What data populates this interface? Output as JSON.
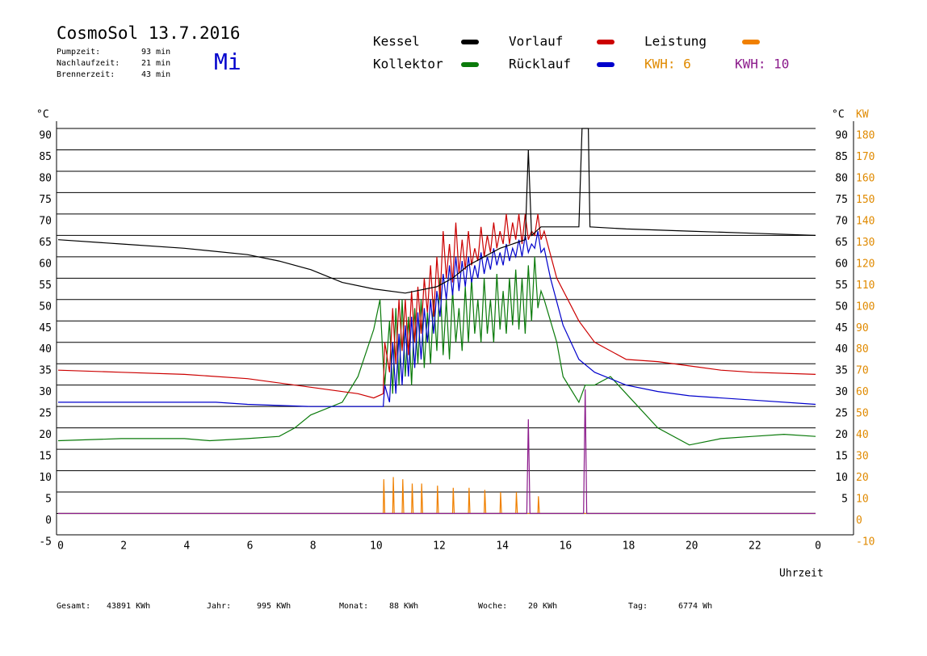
{
  "chart_data": {
    "type": "line",
    "title": "CosmoSol 13.7.2016",
    "weekday": "Mi",
    "info": [
      {
        "label": "Pumpzeit:",
        "value": "93 min"
      },
      {
        "label": "Nachlaufzeit:",
        "value": "21 min"
      },
      {
        "label": "Brennerzeit:",
        "value": "43 min"
      }
    ],
    "kwh_labels": [
      {
        "text": "KWH: 6",
        "color": "#e08a00"
      },
      {
        "text": "KWH: 10",
        "color": "#8b1a8b"
      }
    ],
    "y_unit": "°C",
    "y_unit_right": "°C",
    "y2_unit": "KW",
    "x_label": "Uhrzeit",
    "xlim": [
      0,
      24
    ],
    "xticks": [
      0,
      2,
      4,
      6,
      8,
      10,
      12,
      14,
      16,
      18,
      20,
      22,
      {
        "value": 24,
        "label": "0"
      }
    ],
    "ylim": [
      -5,
      90
    ],
    "yticks": [
      -5,
      0,
      5,
      10,
      15,
      20,
      25,
      30,
      35,
      40,
      45,
      50,
      55,
      60,
      65,
      70,
      75,
      80,
      85,
      90
    ],
    "yticks_right": [
      5,
      10,
      15,
      20,
      25,
      30,
      35,
      40,
      45,
      50,
      55,
      60,
      65,
      70,
      75,
      80,
      85,
      90
    ],
    "y2lim": [
      -10,
      180
    ],
    "y2ticks": [
      -10,
      0,
      10,
      20,
      30,
      40,
      50,
      60,
      70,
      80,
      90,
      100,
      110,
      120,
      130,
      140,
      150,
      160,
      170,
      180
    ],
    "grid": true,
    "series": [
      {
        "name": "Kessel",
        "color": "#000000",
        "x": [
          0,
          2,
          4,
          6,
          7,
          8,
          9,
          10,
          11,
          12,
          12.5,
          13,
          14,
          14.8,
          14.9,
          15,
          15.3,
          16.5,
          16.6,
          16.8,
          16.85,
          18,
          20,
          22,
          24
        ],
        "values": [
          64,
          63,
          62,
          60.5,
          59,
          57,
          54,
          52.5,
          51.5,
          53,
          55,
          58,
          62,
          64,
          85,
          65,
          67,
          67,
          90,
          90,
          67,
          66.5,
          66,
          65.5,
          65
        ]
      },
      {
        "name": "Kollektor",
        "color": "#0a7a0a",
        "x": [
          0,
          2,
          4,
          4.8,
          6,
          7,
          7.5,
          8,
          9,
          9.5,
          10,
          10.2,
          10.3,
          10.35,
          10.5,
          10.6,
          10.7,
          10.8,
          10.9,
          11.0,
          11.1,
          11.2,
          11.3,
          11.4,
          11.5,
          11.6,
          11.7,
          11.8,
          11.9,
          12.0,
          12.1,
          12.2,
          12.3,
          12.4,
          12.5,
          12.6,
          12.7,
          12.8,
          12.9,
          13.0,
          13.1,
          13.2,
          13.3,
          13.4,
          13.5,
          13.6,
          13.7,
          13.8,
          13.9,
          14.0,
          14.1,
          14.2,
          14.3,
          14.4,
          14.5,
          14.6,
          14.7,
          14.8,
          14.9,
          15.0,
          15.1,
          15.2,
          15.3,
          15.4,
          15.8,
          16,
          16.5,
          16.7,
          17,
          17.5,
          18,
          19,
          20,
          21,
          22,
          23,
          24
        ],
        "values": [
          17,
          17.5,
          17.5,
          17,
          17.5,
          18,
          20,
          23,
          26,
          32,
          43,
          50,
          35,
          30,
          45,
          28,
          48,
          30,
          50,
          32,
          46,
          30,
          48,
          35,
          50,
          34,
          47,
          35,
          50,
          38,
          55,
          37,
          50,
          36,
          52,
          40,
          48,
          38,
          53,
          40,
          55,
          42,
          50,
          40,
          55,
          42,
          50,
          40,
          56,
          43,
          52,
          42,
          55,
          44,
          57,
          43,
          55,
          42,
          58,
          45,
          60,
          48,
          52,
          50,
          40,
          32,
          26,
          30,
          30,
          32,
          28,
          20,
          16,
          17.5,
          18,
          18.5,
          18
        ]
      },
      {
        "name": "Vorlauf",
        "color": "#cc0000",
        "x": [
          0,
          2,
          4,
          6,
          8,
          9.5,
          10,
          10.3,
          10.35,
          10.5,
          10.6,
          10.7,
          10.8,
          10.9,
          11.0,
          11.1,
          11.2,
          11.3,
          11.4,
          11.5,
          11.6,
          11.7,
          11.8,
          11.9,
          12.0,
          12.1,
          12.2,
          12.3,
          12.4,
          12.5,
          12.6,
          12.7,
          12.8,
          12.9,
          13.0,
          13.1,
          13.2,
          13.3,
          13.4,
          13.5,
          13.6,
          13.7,
          13.8,
          13.9,
          14.0,
          14.1,
          14.2,
          14.3,
          14.4,
          14.5,
          14.6,
          14.7,
          14.8,
          14.9,
          15.0,
          15.1,
          15.2,
          15.3,
          15.4,
          15.8,
          16.5,
          17,
          18,
          19,
          20,
          21,
          22,
          24
        ],
        "values": [
          33.5,
          33,
          32.5,
          31.5,
          29.5,
          28,
          27,
          28,
          40,
          33,
          48,
          35,
          50,
          38,
          50,
          37,
          52,
          40,
          53,
          42,
          55,
          47,
          58,
          46,
          60,
          50,
          66,
          55,
          63,
          54,
          68,
          56,
          64,
          57,
          66,
          58,
          62,
          59,
          67,
          60,
          65,
          61,
          68,
          62,
          66,
          63,
          70,
          63,
          68,
          64,
          70,
          63,
          70,
          64,
          66,
          65,
          70,
          64,
          66,
          55,
          45,
          40,
          36,
          35.5,
          34.5,
          33.5,
          33,
          32.5
        ]
      },
      {
        "name": "Rücklauf",
        "color": "#0000cc",
        "x": [
          0,
          5,
          6,
          8,
          10,
          10.3,
          10.35,
          10.5,
          10.6,
          10.7,
          10.8,
          10.9,
          11.0,
          11.1,
          11.2,
          11.3,
          11.4,
          11.5,
          11.6,
          11.7,
          11.8,
          11.9,
          12.0,
          12.1,
          12.2,
          12.3,
          12.4,
          12.5,
          12.6,
          12.7,
          12.8,
          12.9,
          13.0,
          13.1,
          13.2,
          13.3,
          13.4,
          13.5,
          13.6,
          13.7,
          13.8,
          13.9,
          14.0,
          14.1,
          14.2,
          14.3,
          14.4,
          14.5,
          14.6,
          14.7,
          14.8,
          14.9,
          15.0,
          15.1,
          15.2,
          15.3,
          15.4,
          15.6,
          16,
          16.5,
          17,
          18,
          19,
          20,
          22,
          24
        ],
        "values": [
          26,
          26,
          25.5,
          25,
          25,
          25,
          30,
          26,
          40,
          28,
          42,
          30,
          44,
          32,
          46,
          34,
          47,
          36,
          48,
          40,
          50,
          42,
          52,
          46,
          56,
          50,
          58,
          51,
          60,
          52,
          59,
          53,
          60,
          54,
          58,
          55,
          61,
          56,
          60,
          57,
          62,
          58,
          61,
          58,
          63,
          59,
          62,
          60,
          64,
          60,
          65,
          61,
          63,
          62,
          66,
          61,
          62,
          55,
          44,
          36,
          33,
          30,
          28.5,
          27.5,
          26.5,
          25.5
        ]
      },
      {
        "name": "Leistung",
        "color": "#f08000",
        "axis": "y2",
        "x": [
          0,
          10.3,
          10.32,
          10.35,
          10.6,
          10.62,
          10.65,
          10.9,
          10.92,
          10.95,
          11.2,
          11.22,
          11.25,
          11.5,
          11.52,
          11.55,
          12.0,
          12.02,
          12.05,
          12.5,
          12.52,
          12.55,
          13.0,
          13.02,
          13.05,
          13.5,
          13.52,
          13.55,
          14.0,
          14.02,
          14.05,
          14.5,
          14.52,
          14.55,
          15.2,
          15.22,
          15.25,
          24
        ],
        "values": [
          0,
          0,
          16,
          0,
          0,
          17,
          0,
          0,
          16,
          0,
          0,
          14,
          0,
          0,
          14,
          0,
          0,
          13,
          0,
          0,
          12,
          0,
          0,
          12,
          0,
          0,
          11,
          0,
          0,
          10,
          0,
          0,
          10,
          0,
          0,
          8,
          0,
          0
        ]
      },
      {
        "color": "#8b1a8b",
        "axis": "y2",
        "x": [
          0,
          14.85,
          14.9,
          14.95,
          16.65,
          16.7,
          16.75,
          24
        ],
        "values": [
          0,
          0,
          44,
          0,
          0,
          58,
          0,
          0
        ]
      },
      {
        "color": "#00d0d0",
        "x": [
          0,
          24
        ],
        "values": [
          0,
          0
        ]
      }
    ],
    "totals": [
      {
        "label": "Gesamt:",
        "value": "43891 KWh"
      },
      {
        "label": "Jahr:",
        "value": "995 KWh"
      },
      {
        "label": "Monat:",
        "value": "88 KWh"
      },
      {
        "label": "Woche:",
        "value": "20 KWh"
      },
      {
        "label": "Tag:",
        "value": "6774 Wh"
      }
    ]
  }
}
